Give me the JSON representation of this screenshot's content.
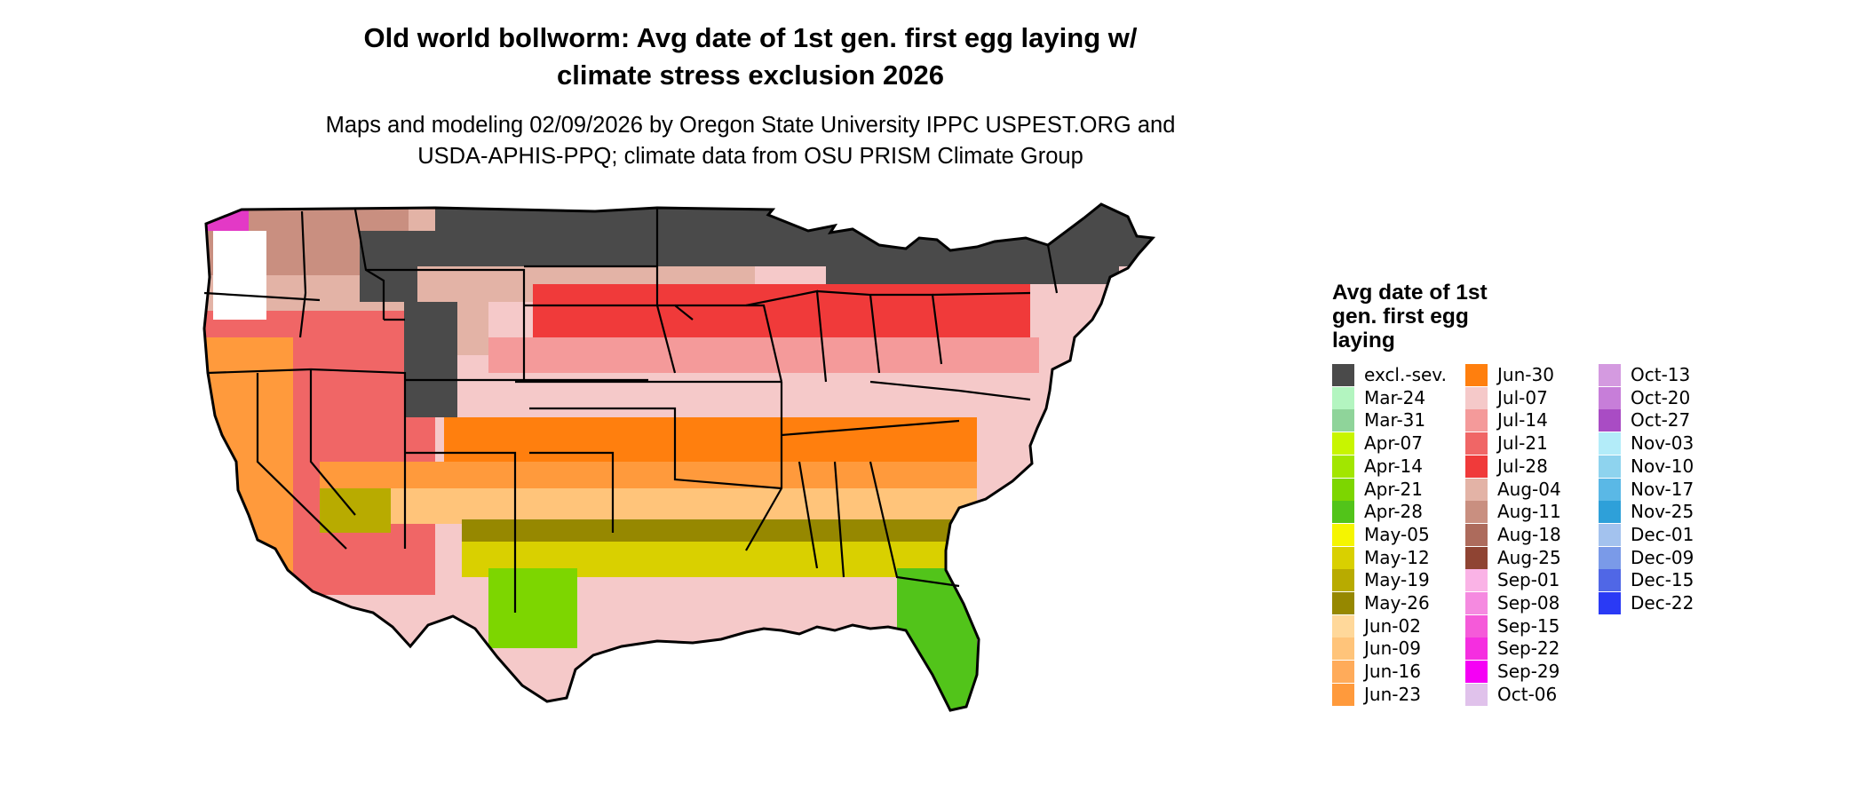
{
  "title_line1": "Old world bollworm: Avg date of 1st gen. first egg laying w/",
  "title_line2": "climate stress exclusion 2026",
  "subtitle_line1": "Maps and modeling 02/09/2026 by Oregon State University IPPC USPEST.ORG and",
  "subtitle_line2": "USDA-APHIS-PPQ; climate data from OSU PRISM Climate Group",
  "legend": {
    "title_line1": "Avg date of 1st",
    "title_line2": "gen. first egg",
    "title_line3": "laying",
    "columns": [
      [
        {
          "label": "excl.-sev.",
          "color": "#4a4a4a"
        },
        {
          "label": "Mar-24",
          "color": "#b3f5c0"
        },
        {
          "label": "Mar-31",
          "color": "#8fd49a"
        },
        {
          "label": "Apr-07",
          "color": "#c8f500"
        },
        {
          "label": "Apr-14",
          "color": "#a2e600"
        },
        {
          "label": "Apr-21",
          "color": "#7dd600"
        },
        {
          "label": "Apr-28",
          "color": "#52c41a"
        },
        {
          "label": "May-05",
          "color": "#f5f500"
        },
        {
          "label": "May-12",
          "color": "#d9d000"
        },
        {
          "label": "May-19",
          "color": "#b8ab00"
        },
        {
          "label": "May-26",
          "color": "#968800"
        },
        {
          "label": "Jun-02",
          "color": "#ffd89a"
        },
        {
          "label": "Jun-09",
          "color": "#ffc47a"
        },
        {
          "label": "Jun-16",
          "color": "#ffab5a"
        },
        {
          "label": "Jun-23",
          "color": "#ff9a3c"
        }
      ],
      [
        {
          "label": "Jun-30",
          "color": "#ff7f0e"
        },
        {
          "label": "Jul-07",
          "color": "#f5c9c9"
        },
        {
          "label": "Jul-14",
          "color": "#f49a9a"
        },
        {
          "label": "Jul-21",
          "color": "#f06666"
        },
        {
          "label": "Jul-28",
          "color": "#f03a3a"
        },
        {
          "label": "Aug-04",
          "color": "#e3b3a6"
        },
        {
          "label": "Aug-11",
          "color": "#c98f80"
        },
        {
          "label": "Aug-18",
          "color": "#ad6b5c"
        },
        {
          "label": "Aug-25",
          "color": "#8f4433"
        },
        {
          "label": "Sep-01",
          "color": "#fab3e6"
        },
        {
          "label": "Sep-08",
          "color": "#f58ae0"
        },
        {
          "label": "Sep-15",
          "color": "#f55ad9"
        },
        {
          "label": "Sep-22",
          "color": "#f52ee0"
        },
        {
          "label": "Sep-29",
          "color": "#f500f5"
        },
        {
          "label": "Oct-06",
          "color": "#e0c2eb"
        }
      ],
      [
        {
          "label": "Oct-13",
          "color": "#d49ae0"
        },
        {
          "label": "Oct-20",
          "color": "#c77ed9"
        },
        {
          "label": "Oct-27",
          "color": "#a94cc4"
        },
        {
          "label": "Nov-03",
          "color": "#b3ecf9"
        },
        {
          "label": "Nov-10",
          "color": "#8ed3ee"
        },
        {
          "label": "Nov-17",
          "color": "#5ab8e6"
        },
        {
          "label": "Nov-25",
          "color": "#2ea0d9"
        },
        {
          "label": "Dec-01",
          "color": "#a3c2ee"
        },
        {
          "label": "Dec-09",
          "color": "#7a9ae8"
        },
        {
          "label": "Dec-15",
          "color": "#5067e6"
        },
        {
          "label": "Dec-22",
          "color": "#2a3af5"
        }
      ]
    ]
  }
}
